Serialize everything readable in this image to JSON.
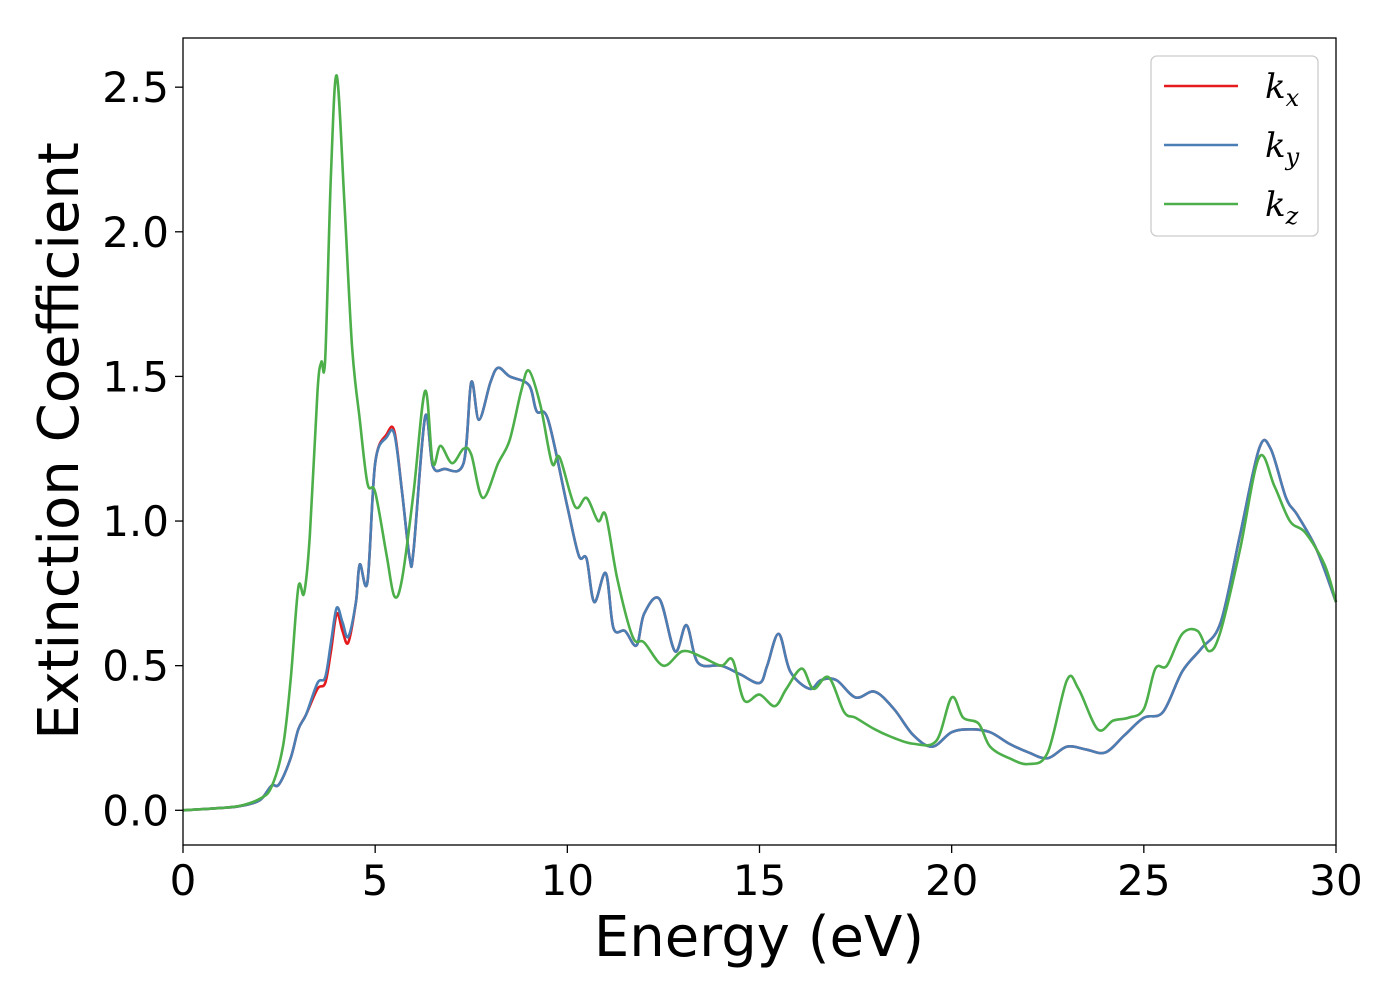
{
  "chart_data": {
    "type": "line",
    "title": "",
    "xlabel": "Energy (eV)",
    "ylabel": "Extinction Coefficient",
    "xlim": [
      0,
      30
    ],
    "ylim": [
      -0.12,
      2.67
    ],
    "xticks": [
      0,
      5,
      10,
      15,
      20,
      25,
      30
    ],
    "xtick_labels": [
      "0",
      "5",
      "10",
      "15",
      "20",
      "25",
      "30"
    ],
    "yticks": [
      0.0,
      0.5,
      1.0,
      1.5,
      2.0,
      2.5
    ],
    "ytick_labels": [
      "0.0",
      "0.5",
      "1.0",
      "1.5",
      "2.0",
      "2.5"
    ],
    "grid": false,
    "legend": {
      "placement": "top-right"
    },
    "series": [
      {
        "name": "k",
        "subscript": "x",
        "color": "#e41a1c",
        "points": [
          [
            0,
            0
          ],
          [
            1,
            0.008
          ],
          [
            1.5,
            0.015
          ],
          [
            2,
            0.035
          ],
          [
            2.3,
            0.085
          ],
          [
            2.5,
            0.09
          ],
          [
            2.8,
            0.18
          ],
          [
            3,
            0.28
          ],
          [
            3.2,
            0.33
          ],
          [
            3.5,
            0.42
          ],
          [
            3.7,
            0.44
          ],
          [
            3.85,
            0.55
          ],
          [
            4,
            0.68
          ],
          [
            4.15,
            0.62
          ],
          [
            4.3,
            0.58
          ],
          [
            4.5,
            0.72
          ],
          [
            4.6,
            0.85
          ],
          [
            4.8,
            0.79
          ],
          [
            5,
            1.2
          ],
          [
            5.3,
            1.3
          ],
          [
            5.5,
            1.31
          ],
          [
            5.7,
            1.1
          ],
          [
            5.9,
            0.87
          ],
          [
            6,
            0.9
          ],
          [
            6.3,
            1.36
          ],
          [
            6.5,
            1.19
          ],
          [
            6.8,
            1.18
          ],
          [
            7.3,
            1.2
          ],
          [
            7.5,
            1.48
          ],
          [
            7.7,
            1.35
          ],
          [
            8,
            1.48
          ],
          [
            8.2,
            1.53
          ],
          [
            8.5,
            1.5
          ],
          [
            9,
            1.47
          ],
          [
            9.2,
            1.38
          ],
          [
            9.5,
            1.35
          ],
          [
            10,
            1.05
          ],
          [
            10.3,
            0.88
          ],
          [
            10.5,
            0.87
          ],
          [
            10.7,
            0.72
          ],
          [
            11,
            0.82
          ],
          [
            11.2,
            0.63
          ],
          [
            11.5,
            0.62
          ],
          [
            11.8,
            0.57
          ],
          [
            12,
            0.68
          ],
          [
            12.4,
            0.73
          ],
          [
            12.8,
            0.55
          ],
          [
            13.1,
            0.64
          ],
          [
            13.4,
            0.51
          ],
          [
            14,
            0.5
          ],
          [
            14.5,
            0.47
          ],
          [
            15,
            0.44
          ],
          [
            15.2,
            0.5
          ],
          [
            15.5,
            0.61
          ],
          [
            15.8,
            0.48
          ],
          [
            16.3,
            0.42
          ],
          [
            16.6,
            0.45
          ],
          [
            17,
            0.45
          ],
          [
            17.5,
            0.39
          ],
          [
            18,
            0.41
          ],
          [
            18.5,
            0.35
          ],
          [
            19,
            0.26
          ],
          [
            19.5,
            0.22
          ],
          [
            20,
            0.27
          ],
          [
            20.5,
            0.28
          ],
          [
            21,
            0.27
          ],
          [
            21.5,
            0.23
          ],
          [
            22,
            0.2
          ],
          [
            22.5,
            0.18
          ],
          [
            23,
            0.22
          ],
          [
            23.5,
            0.21
          ],
          [
            24,
            0.2
          ],
          [
            24.5,
            0.26
          ],
          [
            25,
            0.32
          ],
          [
            25.5,
            0.34
          ],
          [
            26,
            0.48
          ],
          [
            26.5,
            0.56
          ],
          [
            27,
            0.65
          ],
          [
            27.5,
            0.95
          ],
          [
            28,
            1.25
          ],
          [
            28.3,
            1.25
          ],
          [
            28.7,
            1.08
          ],
          [
            29,
            1.02
          ],
          [
            29.5,
            0.9
          ],
          [
            30,
            0.72
          ]
        ]
      },
      {
        "name": "k",
        "subscript": "y",
        "color": "#4a7fb5",
        "points": [
          [
            0,
            0
          ],
          [
            1,
            0.008
          ],
          [
            1.5,
            0.015
          ],
          [
            2,
            0.035
          ],
          [
            2.3,
            0.085
          ],
          [
            2.5,
            0.09
          ],
          [
            2.8,
            0.18
          ],
          [
            3,
            0.28
          ],
          [
            3.2,
            0.33
          ],
          [
            3.5,
            0.44
          ],
          [
            3.7,
            0.46
          ],
          [
            3.85,
            0.58
          ],
          [
            4,
            0.7
          ],
          [
            4.15,
            0.65
          ],
          [
            4.3,
            0.6
          ],
          [
            4.5,
            0.72
          ],
          [
            4.6,
            0.85
          ],
          [
            4.8,
            0.79
          ],
          [
            5,
            1.2
          ],
          [
            5.3,
            1.29
          ],
          [
            5.5,
            1.3
          ],
          [
            5.7,
            1.1
          ],
          [
            5.9,
            0.87
          ],
          [
            6,
            0.9
          ],
          [
            6.3,
            1.36
          ],
          [
            6.5,
            1.19
          ],
          [
            6.8,
            1.18
          ],
          [
            7.3,
            1.2
          ],
          [
            7.5,
            1.48
          ],
          [
            7.7,
            1.35
          ],
          [
            8,
            1.48
          ],
          [
            8.2,
            1.53
          ],
          [
            8.5,
            1.5
          ],
          [
            9,
            1.47
          ],
          [
            9.2,
            1.38
          ],
          [
            9.5,
            1.35
          ],
          [
            10,
            1.05
          ],
          [
            10.3,
            0.88
          ],
          [
            10.5,
            0.87
          ],
          [
            10.7,
            0.72
          ],
          [
            11,
            0.82
          ],
          [
            11.2,
            0.63
          ],
          [
            11.5,
            0.62
          ],
          [
            11.8,
            0.57
          ],
          [
            12,
            0.68
          ],
          [
            12.4,
            0.73
          ],
          [
            12.8,
            0.55
          ],
          [
            13.1,
            0.64
          ],
          [
            13.4,
            0.51
          ],
          [
            14,
            0.5
          ],
          [
            14.5,
            0.47
          ],
          [
            15,
            0.44
          ],
          [
            15.2,
            0.5
          ],
          [
            15.5,
            0.61
          ],
          [
            15.8,
            0.48
          ],
          [
            16.3,
            0.42
          ],
          [
            16.6,
            0.45
          ],
          [
            17,
            0.45
          ],
          [
            17.5,
            0.39
          ],
          [
            18,
            0.41
          ],
          [
            18.5,
            0.35
          ],
          [
            19,
            0.26
          ],
          [
            19.5,
            0.22
          ],
          [
            20,
            0.27
          ],
          [
            20.5,
            0.28
          ],
          [
            21,
            0.27
          ],
          [
            21.5,
            0.23
          ],
          [
            22,
            0.2
          ],
          [
            22.5,
            0.18
          ],
          [
            23,
            0.22
          ],
          [
            23.5,
            0.21
          ],
          [
            24,
            0.2
          ],
          [
            24.5,
            0.26
          ],
          [
            25,
            0.32
          ],
          [
            25.5,
            0.34
          ],
          [
            26,
            0.48
          ],
          [
            26.5,
            0.56
          ],
          [
            27,
            0.65
          ],
          [
            27.5,
            0.95
          ],
          [
            28,
            1.25
          ],
          [
            28.3,
            1.25
          ],
          [
            28.7,
            1.08
          ],
          [
            29,
            1.02
          ],
          [
            29.5,
            0.9
          ],
          [
            30,
            0.72
          ]
        ]
      },
      {
        "name": "k",
        "subscript": "z",
        "color": "#4daf4a",
        "points": [
          [
            0,
            0
          ],
          [
            1,
            0.008
          ],
          [
            1.5,
            0.016
          ],
          [
            2,
            0.04
          ],
          [
            2.3,
            0.08
          ],
          [
            2.6,
            0.22
          ],
          [
            2.8,
            0.45
          ],
          [
            3,
            0.77
          ],
          [
            3.15,
            0.75
          ],
          [
            3.3,
            0.95
          ],
          [
            3.5,
            1.45
          ],
          [
            3.6,
            1.55
          ],
          [
            3.7,
            1.56
          ],
          [
            3.85,
            2.2
          ],
          [
            4,
            2.54
          ],
          [
            4.2,
            2.1
          ],
          [
            4.4,
            1.6
          ],
          [
            4.6,
            1.35
          ],
          [
            4.8,
            1.13
          ],
          [
            5,
            1.1
          ],
          [
            5.3,
            0.88
          ],
          [
            5.5,
            0.74
          ],
          [
            5.7,
            0.8
          ],
          [
            6,
            1.1
          ],
          [
            6.3,
            1.45
          ],
          [
            6.5,
            1.2
          ],
          [
            6.7,
            1.26
          ],
          [
            7,
            1.2
          ],
          [
            7.3,
            1.25
          ],
          [
            7.5,
            1.23
          ],
          [
            7.8,
            1.08
          ],
          [
            8.2,
            1.2
          ],
          [
            8.5,
            1.28
          ],
          [
            8.8,
            1.45
          ],
          [
            9,
            1.52
          ],
          [
            9.3,
            1.4
          ],
          [
            9.6,
            1.2
          ],
          [
            9.8,
            1.22
          ],
          [
            10.2,
            1.05
          ],
          [
            10.5,
            1.08
          ],
          [
            10.8,
            1.0
          ],
          [
            11,
            1.02
          ],
          [
            11.3,
            0.8
          ],
          [
            11.7,
            0.6
          ],
          [
            12,
            0.58
          ],
          [
            12.5,
            0.5
          ],
          [
            13,
            0.55
          ],
          [
            13.5,
            0.53
          ],
          [
            14,
            0.5
          ],
          [
            14.3,
            0.52
          ],
          [
            14.6,
            0.38
          ],
          [
            15,
            0.4
          ],
          [
            15.4,
            0.36
          ],
          [
            15.7,
            0.42
          ],
          [
            16.1,
            0.49
          ],
          [
            16.4,
            0.42
          ],
          [
            16.8,
            0.46
          ],
          [
            17.2,
            0.34
          ],
          [
            17.5,
            0.32
          ],
          [
            18,
            0.28
          ],
          [
            18.5,
            0.25
          ],
          [
            19,
            0.23
          ],
          [
            19.6,
            0.24
          ],
          [
            20,
            0.39
          ],
          [
            20.3,
            0.32
          ],
          [
            20.7,
            0.3
          ],
          [
            21,
            0.22
          ],
          [
            21.5,
            0.18
          ],
          [
            22,
            0.16
          ],
          [
            22.5,
            0.2
          ],
          [
            23,
            0.45
          ],
          [
            23.3,
            0.42
          ],
          [
            23.8,
            0.28
          ],
          [
            24.2,
            0.31
          ],
          [
            24.6,
            0.32
          ],
          [
            25,
            0.35
          ],
          [
            25.3,
            0.49
          ],
          [
            25.6,
            0.5
          ],
          [
            26,
            0.61
          ],
          [
            26.4,
            0.62
          ],
          [
            26.7,
            0.55
          ],
          [
            27,
            0.62
          ],
          [
            27.5,
            0.9
          ],
          [
            28,
            1.22
          ],
          [
            28.4,
            1.12
          ],
          [
            28.8,
            1.0
          ],
          [
            29.2,
            0.96
          ],
          [
            29.7,
            0.85
          ],
          [
            30,
            0.72
          ]
        ]
      }
    ]
  }
}
